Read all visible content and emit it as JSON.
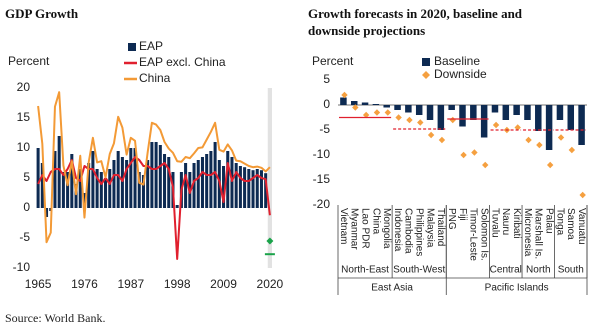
{
  "chart_data": [
    {
      "type": "bar-line",
      "title": "GDP Growth",
      "y_label": "Percent",
      "x": [
        1965,
        1966,
        1967,
        1968,
        1969,
        1970,
        1971,
        1972,
        1973,
        1974,
        1975,
        1976,
        1977,
        1978,
        1979,
        1980,
        1981,
        1982,
        1983,
        1984,
        1985,
        1986,
        1987,
        1988,
        1989,
        1990,
        1991,
        1992,
        1993,
        1994,
        1995,
        1996,
        1997,
        1998,
        1999,
        2000,
        2001,
        2002,
        2003,
        2004,
        2005,
        2006,
        2007,
        2008,
        2009,
        2010,
        2011,
        2012,
        2013,
        2014,
        2015,
        2016,
        2017,
        2018,
        2019,
        2020
      ],
      "series": [
        {
          "name": "EAP",
          "mark": "bar",
          "color": "#0d2a52",
          "values": [
            10,
            7.5,
            -1.5,
            -0.5,
            9.5,
            12,
            6,
            6,
            9,
            4,
            6.5,
            2.5,
            7.5,
            9.5,
            6.5,
            6,
            5,
            6.5,
            8,
            9.5,
            8.5,
            8,
            10,
            10,
            6,
            5.5,
            8,
            11,
            11,
            10.5,
            9,
            8.5,
            6,
            0.5,
            6,
            7.5,
            6,
            7.5,
            8,
            8.5,
            9,
            9.5,
            11,
            8,
            7,
            9.5,
            8.5,
            7.5,
            7,
            6.8,
            6.5,
            6.3,
            6.5,
            6.3,
            5.8,
            null
          ]
        },
        {
          "name": "EAP excl. China",
          "mark": "line",
          "color": "#e0202e",
          "values": [
            4,
            5.5,
            4.5,
            6,
            6.5,
            6.5,
            5.5,
            6.5,
            8,
            5,
            4.5,
            7,
            6.5,
            6.5,
            5,
            4,
            5,
            4,
            5.5,
            5.5,
            4.5,
            6.5,
            7.5,
            8.5,
            8,
            7,
            7,
            6.5,
            6.5,
            7,
            7.5,
            6.5,
            3.5,
            -8.5,
            3,
            5.5,
            2.5,
            4.5,
            5,
            6,
            5.5,
            5.5,
            6,
            4.5,
            1,
            7.5,
            4.5,
            6,
            5,
            4.5,
            4.5,
            5,
            5.5,
            5,
            4.8,
            -1.2
          ]
        },
        {
          "name": "China",
          "mark": "line",
          "color": "#f39a36",
          "values": [
            17,
            10.7,
            -5.7,
            -4.1,
            16.9,
            19.3,
            7.1,
            3.8,
            7.8,
            2.3,
            8.7,
            -1.6,
            7.6,
            11.7,
            7.6,
            7.8,
            5.1,
            9,
            10.8,
            15.2,
            13.4,
            8.9,
            11.7,
            11.2,
            4.2,
            3.9,
            9.3,
            14.2,
            13.9,
            13,
            11,
            9.9,
            9.2,
            7.8,
            7.7,
            8.5,
            8.3,
            9.1,
            10,
            10.1,
            11.4,
            12.7,
            14.2,
            9.7,
            9.4,
            10.6,
            9.6,
            7.9,
            7.8,
            7.4,
            7,
            6.8,
            6.9,
            6.7,
            6.1,
            6.8
          ]
        }
      ],
      "markers": [
        {
          "x": 2020,
          "value": -5.5,
          "shape": "diamond",
          "color": "#1aa34a"
        },
        {
          "x": 2020,
          "value": -7.7,
          "shape": "dash",
          "color": "#1aa34a"
        }
      ],
      "highlight_xlim": [
        2019.5,
        2020.5
      ],
      "highlight_color": "#e2e2e2",
      "xlim": [
        1964.5,
        2020.5
      ],
      "xticks": [
        1965,
        1976,
        1987,
        1998,
        2009,
        2020
      ],
      "ylim": [
        -10,
        20
      ],
      "yticks": [
        -10,
        -5,
        0,
        5,
        10,
        15,
        20
      ],
      "grid": false
    },
    {
      "type": "grouped-bar",
      "title": "Growth forecasts in 2020, baseline and downside projections",
      "y_label": "Percent",
      "supergroups": [
        {
          "label": "East Asia",
          "groups": [
            {
              "label": "North-East",
              "categories": [
                "Vietnam",
                "Myanmar",
                "Lao PDR",
                "China",
                "Mongolia"
              ],
              "reference_line": -2.5,
              "reference_style": "solid"
            },
            {
              "label": "South-West",
              "categories": [
                "Indonesia",
                "Cambodia",
                "Philippines",
                "Malaysia",
                "Thailand"
              ],
              "reference_line": -4.8,
              "reference_style": "dashed"
            }
          ]
        },
        {
          "label": "Pacific Islands",
          "groups": [
            {
              "label": null,
              "categories": [
                "PNG",
                "Fiji",
                "Timor-Leste",
                "Solomon Is."
              ],
              "reference_line": -2.8,
              "reference_style": "solid"
            },
            {
              "label": "Central",
              "categories": [
                "Tuvalu",
                "Nauru",
                "Kiribati"
              ],
              "reference_line": -5,
              "reference_style": "dashed"
            },
            {
              "label": "North",
              "categories": [
                "Micronesia",
                "Marshall Is.",
                "Palau"
              ],
              "reference_line": -5,
              "reference_style": "dashed"
            },
            {
              "label": "South",
              "categories": [
                "Tonga",
                "Samoa",
                "Vanuatu"
              ],
              "reference_line": -5,
              "reference_style": "dashed"
            }
          ]
        }
      ],
      "reference_color": "#e0202e",
      "series": [
        {
          "name": "Baseline",
          "mark": "bar",
          "color": "#0d2a52",
          "values": [
            1.5,
            0.8,
            0.5,
            0.2,
            -0.5,
            -1,
            -1.5,
            -2,
            -3,
            -5,
            -1,
            -4.3,
            -3,
            -6.5,
            -1.5,
            -3,
            -2,
            -3,
            -5.2,
            -9,
            -3,
            -5,
            -8
          ]
        },
        {
          "name": "Downside",
          "mark": "diamond",
          "color": "#f5a040",
          "values": [
            2,
            -0.5,
            -2,
            -1.5,
            -1.5,
            -2.5,
            -3,
            -3.5,
            -6,
            -7,
            -3,
            -10,
            -9.5,
            -12,
            -4,
            -5,
            -4.5,
            -7,
            -8,
            -12,
            -6.5,
            -9,
            -18
          ]
        }
      ],
      "ylim": [
        -20,
        5
      ],
      "yticks": [
        5,
        0,
        -5,
        -10,
        -15,
        -20
      ]
    }
  ],
  "source": "Source: World Bank."
}
